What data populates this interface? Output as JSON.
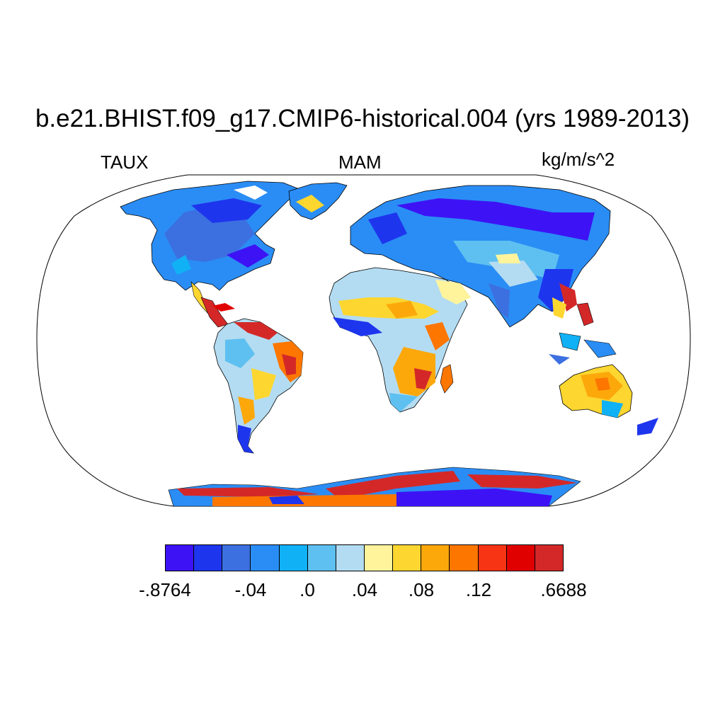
{
  "title": "b.e21.BHIST.f09_g17.CMIP6-historical.004 (yrs 1989-2013)",
  "left_label": "TAUX",
  "center_label": "MAM",
  "right_label": "kg/m/s^2",
  "colorbar": {
    "colors": [
      "#3d13f5",
      "#1e35ee",
      "#3c70e0",
      "#2a8df5",
      "#11b1f5",
      "#5ec0f0",
      "#b3dcf2",
      "#fff49c",
      "#fdd630",
      "#fca80b",
      "#fc7600",
      "#f73414",
      "#e00000",
      "#d42828"
    ],
    "labels": [
      "-.8764",
      "-.04",
      ".0",
      ".04",
      ".08",
      ".12",
      ".6688"
    ]
  },
  "map": {
    "projection": "Robinson",
    "ocean_color": "#ffffff",
    "field": "TAUX"
  }
}
